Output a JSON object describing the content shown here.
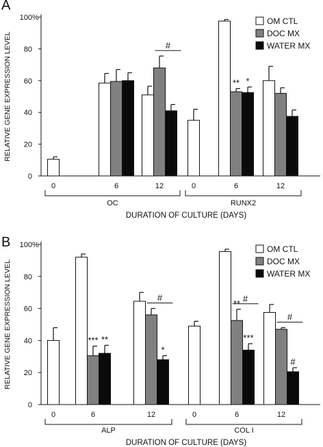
{
  "colors": {
    "om_ctl": "#ffffff",
    "doc_mx": "#808080",
    "water_mx": "#0a0a0a"
  },
  "chart_data": [
    {
      "panel_label": "A",
      "type": "bar",
      "ylabel": "RELATIVE GENE EXPRESSION LEVEL",
      "xlabel": "DURATION OF CULTURE (DAYS)",
      "ylim": [
        0,
        100
      ],
      "y_ticks": [
        "0",
        "20",
        "40",
        "60",
        "80",
        "100%"
      ],
      "legend_position": "top-right",
      "legend": [
        "OM CTL",
        "DOC MX",
        "WATER MX"
      ],
      "groups": [
        {
          "name": "OC",
          "categories": [
            {
              "day": "0",
              "values": [
                10.5,
                null,
                null
              ],
              "errors": [
                1.5,
                null,
                null
              ],
              "annotations": [
                "",
                "",
                ""
              ]
            },
            {
              "day": "6",
              "values": [
                58.5,
                59.5,
                60
              ],
              "errors": [
                6,
                7.5,
                5
              ],
              "annotations": [
                "",
                "",
                ""
              ]
            },
            {
              "day": "12",
              "values": [
                51,
                68,
                41
              ],
              "errors": [
                5.5,
                7.5,
                4
              ],
              "annotations": [
                "",
                "",
                ""
              ]
            }
          ]
        },
        {
          "name": "RUNX2",
          "categories": [
            {
              "day": "0",
              "values": [
                35,
                null,
                null
              ],
              "errors": [
                7,
                null,
                null
              ],
              "annotations": [
                "",
                "",
                ""
              ]
            },
            {
              "day": "6",
              "values": [
                97.5,
                53,
                52.5
              ],
              "errors": [
                1,
                2,
                3.5
              ],
              "annotations": [
                "",
                "**",
                "*"
              ]
            },
            {
              "day": "12",
              "values": [
                60,
                52,
                37.5
              ],
              "errors": [
                9,
                3.5,
                4
              ],
              "annotations": [
                "",
                "",
                ""
              ]
            }
          ]
        }
      ],
      "brackets": [
        {
          "group": 0,
          "category": 2,
          "from": 1,
          "to": 2,
          "label": "#"
        }
      ]
    },
    {
      "panel_label": "B",
      "type": "bar",
      "ylabel": "RELATIVE GENE EXPRESSION LEVEL",
      "xlabel": "DURATION OF CULTURE (DAYS)",
      "ylim": [
        0,
        100
      ],
      "y_ticks": [
        "0",
        "20",
        "40",
        "60",
        "80",
        "100%"
      ],
      "legend_position": "top-right",
      "legend": [
        "OM CTL",
        "DOC MX",
        "WATER MX"
      ],
      "groups": [
        {
          "name": "ALP",
          "categories": [
            {
              "day": "0",
              "values": [
                40,
                null,
                null
              ],
              "errors": [
                8,
                null,
                null
              ],
              "annotations": [
                "",
                "",
                ""
              ]
            },
            {
              "day": "6",
              "values": [
                92,
                30.5,
                32
              ],
              "errors": [
                2,
                6,
                5
              ],
              "annotations": [
                "",
                "***",
                "**"
              ]
            },
            {
              "day": "12",
              "values": [
                64.5,
                56,
                28
              ],
              "errors": [
                5.5,
                4,
                2.5
              ],
              "annotations": [
                "",
                "",
                "*"
              ]
            }
          ]
        },
        {
          "name": "COL I",
          "categories": [
            {
              "day": "0",
              "values": [
                49,
                null,
                null
              ],
              "errors": [
                3,
                null,
                null
              ],
              "annotations": [
                "",
                "",
                ""
              ]
            },
            {
              "day": "6",
              "values": [
                95.5,
                52.5,
                34
              ],
              "errors": [
                1.5,
                7,
                4
              ],
              "annotations": [
                "",
                "**",
                "***"
              ]
            },
            {
              "day": "12",
              "values": [
                57.5,
                47,
                20.5
              ],
              "errors": [
                5,
                1,
                2.5
              ],
              "annotations": [
                "",
                "",
                "#"
              ]
            }
          ]
        }
      ],
      "brackets": [
        {
          "group": 0,
          "category": 2,
          "from": 1,
          "to": 2,
          "label": "#"
        },
        {
          "group": 1,
          "category": 1,
          "from": 1,
          "to": 2,
          "label": "#"
        },
        {
          "group": 1,
          "category": 2,
          "from": 1,
          "to": 2,
          "label": "#"
        }
      ]
    }
  ]
}
